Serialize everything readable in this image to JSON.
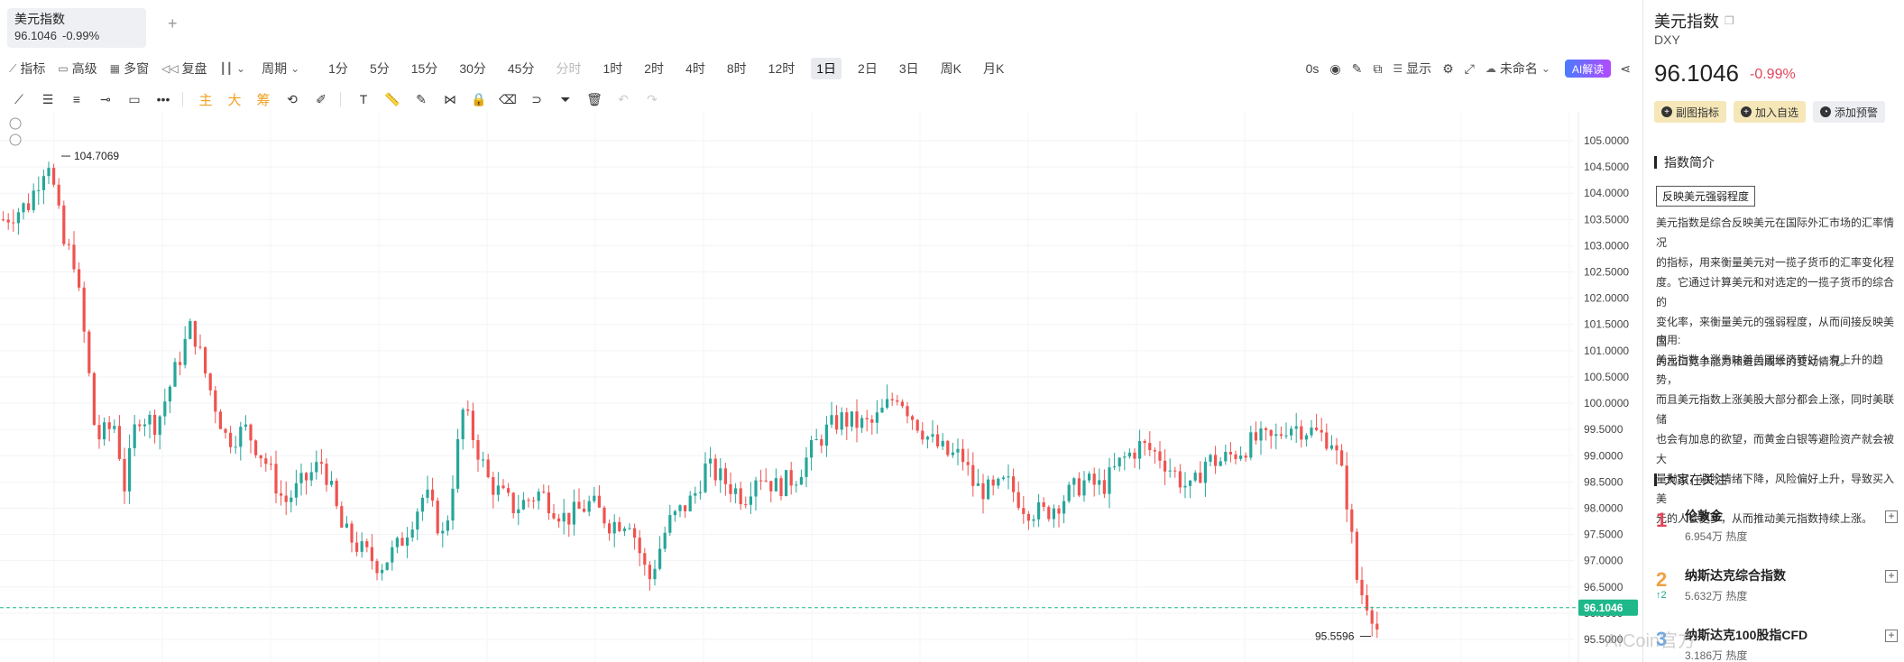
{
  "tab": {
    "name": "美元指数",
    "price": "96.1046",
    "change": "-0.99%",
    "add": "+"
  },
  "toolbar": {
    "indicator": "指标",
    "advanced": "高级",
    "multi_window": "多窗",
    "replay": "复盘",
    "period": "周期",
    "periods": [
      {
        "label": "1分",
        "state": "normal"
      },
      {
        "label": "5分",
        "state": "normal"
      },
      {
        "label": "15分",
        "state": "normal"
      },
      {
        "label": "30分",
        "state": "normal"
      },
      {
        "label": "45分",
        "state": "normal"
      },
      {
        "label": "分时",
        "state": "dim"
      },
      {
        "label": "1时",
        "state": "normal"
      },
      {
        "label": "2时",
        "state": "normal"
      },
      {
        "label": "4时",
        "state": "normal"
      },
      {
        "label": "8时",
        "state": "normal"
      },
      {
        "label": "12时",
        "state": "normal"
      },
      {
        "label": "1日",
        "state": "active"
      },
      {
        "label": "2日",
        "state": "normal"
      },
      {
        "label": "3日",
        "state": "normal"
      },
      {
        "label": "周K",
        "state": "normal"
      },
      {
        "label": "月K",
        "state": "normal"
      }
    ],
    "countdown": "0s",
    "display": "显示",
    "unnamed": "未命名",
    "ai": "AI解读"
  },
  "drawing_tools": {
    "main": "主",
    "big": "大",
    "chip": "筹"
  },
  "chart": {
    "price_axis": [
      "105.0000",
      "104.5000",
      "104.0000",
      "103.5000",
      "103.0000",
      "102.5000",
      "102.0000",
      "101.5000",
      "101.0000",
      "100.5000",
      "100.0000",
      "99.5000",
      "99.0000",
      "98.5000",
      "98.0000",
      "97.5000",
      "97.0000",
      "96.5000",
      "96.0000",
      "95.5000"
    ],
    "axis_max": 105.0,
    "axis_min": 95.5,
    "current_price": "96.1046",
    "current_value": 96.1046,
    "high_label": "104.7069",
    "high_value": 104.7069,
    "low_label": "95.5596",
    "low_value": 95.5596,
    "up_color": "#26a69a",
    "down_color": "#ef5350",
    "price_line_color": "#1fb88a"
  },
  "panel": {
    "title": "美元指数",
    "code": "DXY",
    "price": "96.1046",
    "change": "-0.99%",
    "buttons": {
      "sub_indicator": "副图指标",
      "add_watch": "加入自选",
      "add_alert": "添加预警"
    },
    "intro_heading": "指数简介",
    "tag": "反映美元强弱程度",
    "intro_lines": [
      "美元指数是综合反映美元在国际外汇市场的汇率情况",
      "的指标，用来衡量美元对一揽子货币的汇率变化程",
      "度。它通过计算美元和对选定的一揽子货币的综合的",
      "变化率，来衡量美元的强弱程度，从而间接反映美国",
      "的出口竞争能力和进口成本的变动情况。"
    ],
    "app_heading": "应用:",
    "app_lines": [
      "美元指数上涨意味着美国经济转好，有上升的趋势，",
      "而且美元指数上涨美股大部分都会上涨，同时美联储",
      "也会有加息的欲望，而黄金白银等避险资产就会被大",
      "量抛出，避险情绪下降，风险偏好上升，导致买入美",
      "元的人会更多，从而推动美元指数持续上涨。"
    ],
    "watch_heading": "大家在关注",
    "watch": [
      {
        "rank": "1",
        "name": "伦敦金",
        "heat": "6.954万 热度",
        "rank_color": "#e2465a",
        "up": ""
      },
      {
        "rank": "2",
        "name": "纳斯达克综合指数",
        "heat": "5.632万 热度",
        "rank_color": "#f0a040",
        "up": "↑2"
      },
      {
        "rank": "3",
        "name": "纳斯达克100股指CFD",
        "heat": "3.186万 热度",
        "rank_color": "#6aa8e8",
        "up": ""
      }
    ],
    "watermark": "AICoin官方"
  }
}
